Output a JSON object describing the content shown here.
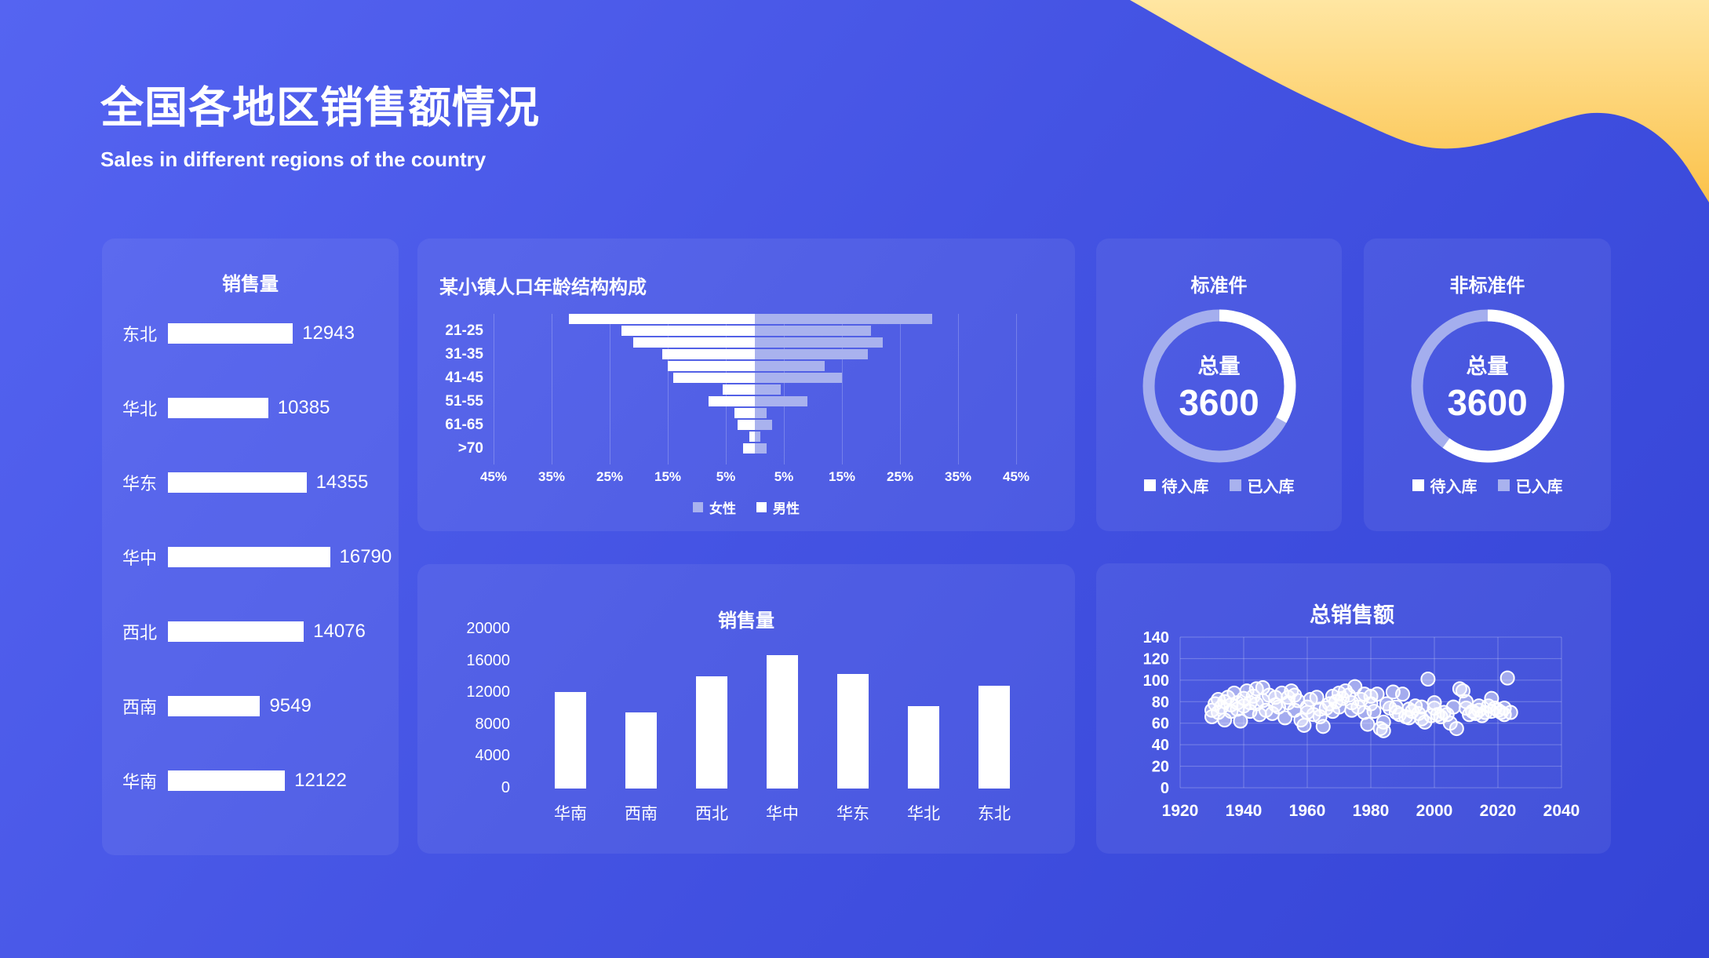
{
  "header": {
    "title": "全国各地区销售额情况",
    "subtitle": "Sales in different regions of the country"
  },
  "colors": {
    "background_top": "#5564f1",
    "background_bottom": "#3444d6",
    "panel": "rgba(255,255,255,0.065)",
    "white": "#ffffff",
    "lavender": "#a9b2ee",
    "grid": "rgba(255,255,255,0.26)",
    "wave_yellow_light": "#ffe39a",
    "wave_yellow_deep": "#fbc24b"
  },
  "chart_data": [
    {
      "id": "sales-hbar",
      "type": "bar",
      "orientation": "horizontal",
      "title": "销售量",
      "categories": [
        "东北",
        "华北",
        "华东",
        "华中",
        "西北",
        "西南",
        "华南"
      ],
      "values": [
        12943,
        10385,
        14355,
        16790,
        14076,
        9549,
        12122
      ],
      "xlim": [
        0,
        20000
      ],
      "bar_color": "#ffffff",
      "value_labels_shown": true
    },
    {
      "id": "age-pyramid",
      "type": "bar",
      "subtype": "population-pyramid",
      "title": "某小镇人口年龄结构构成",
      "categories": [
        "",
        "21-25",
        "",
        "31-35",
        "",
        "41-45",
        "",
        "51-55",
        "",
        "61-65",
        "",
        ">70"
      ],
      "series": [
        {
          "name": "男性",
          "side": "left",
          "color": "#ffffff",
          "values_pct": [
            32,
            23,
            21,
            16,
            15,
            14,
            5.5,
            8,
            3.5,
            3,
            1,
            2
          ]
        },
        {
          "name": "女性",
          "side": "right",
          "color": "#a9b2ee",
          "values_pct": [
            30.5,
            20,
            22,
            19.5,
            12,
            15,
            4.5,
            9,
            2,
            3,
            1,
            2
          ]
        }
      ],
      "x_ticks": [
        "45%",
        "35%",
        "25%",
        "15%",
        "5%",
        "5%",
        "15%",
        "25%",
        "35%",
        "45%"
      ],
      "x_max_pct": 45,
      "legend": [
        {
          "label": "女性",
          "color": "#a9b2ee"
        },
        {
          "label": "男性",
          "color": "#ffffff"
        }
      ],
      "grid": true
    },
    {
      "id": "donut-standard",
      "type": "pie",
      "subtype": "donut",
      "title": "标准件",
      "center_label": "总量",
      "center_value": "3600",
      "slices": [
        {
          "label": "待入库",
          "pct": 33,
          "color": "#ffffff"
        },
        {
          "label": "已入库",
          "pct": 67,
          "color": "#a9b2ee"
        }
      ]
    },
    {
      "id": "donut-nonstandard",
      "type": "pie",
      "subtype": "donut",
      "title": "非标准件",
      "center_label": "总量",
      "center_value": "3600",
      "slices": [
        {
          "label": "待入库",
          "pct": 60,
          "color": "#ffffff"
        },
        {
          "label": "已入库",
          "pct": 40,
          "color": "#a9b2ee"
        }
      ]
    },
    {
      "id": "sales-vbar",
      "type": "bar",
      "orientation": "vertical",
      "title": "销售量",
      "categories": [
        "华南",
        "西南",
        "西北",
        "华中",
        "华东",
        "华北",
        "东北"
      ],
      "values": [
        12122,
        9549,
        14076,
        16790,
        14355,
        10385,
        12943
      ],
      "ylim": [
        0,
        20000
      ],
      "y_ticks": [
        0,
        4000,
        8000,
        12000,
        16000,
        20000
      ],
      "bar_color": "#ffffff",
      "grid": false
    },
    {
      "id": "total-sales-scatter",
      "type": "scatter",
      "title": "总销售额",
      "xlim": [
        1920,
        2040
      ],
      "ylim": [
        0,
        140
      ],
      "x_ticks": [
        1920,
        1940,
        1960,
        1980,
        2000,
        2020,
        2040
      ],
      "y_ticks": [
        0,
        20,
        40,
        60,
        80,
        100,
        120,
        140
      ],
      "grid": true,
      "point_style": {
        "fill": "rgba(255,255,255,0.5)",
        "stroke": "#ffffff",
        "radius": 8.5
      },
      "points": [
        [
          1930,
          66
        ],
        [
          1930,
          72
        ],
        [
          1931,
          78
        ],
        [
          1932,
          70
        ],
        [
          1932,
          82
        ],
        [
          1933,
          75
        ],
        [
          1934,
          80
        ],
        [
          1934,
          63
        ],
        [
          1935,
          84
        ],
        [
          1936,
          77
        ],
        [
          1936,
          71
        ],
        [
          1937,
          88
        ],
        [
          1938,
          79
        ],
        [
          1938,
          73
        ],
        [
          1939,
          62
        ],
        [
          1940,
          83
        ],
        [
          1940,
          76
        ],
        [
          1941,
          90
        ],
        [
          1942,
          71
        ],
        [
          1942,
          79
        ],
        [
          1943,
          85
        ],
        [
          1944,
          92
        ],
        [
          1944,
          78
        ],
        [
          1945,
          68
        ],
        [
          1946,
          93
        ],
        [
          1946,
          81
        ],
        [
          1947,
          72
        ],
        [
          1948,
          86
        ],
        [
          1949,
          69
        ],
        [
          1950,
          77
        ],
        [
          1950,
          84
        ],
        [
          1951,
          75
        ],
        [
          1952,
          88
        ],
        [
          1953,
          65
        ],
        [
          1954,
          84
        ],
        [
          1954,
          79
        ],
        [
          1955,
          90
        ],
        [
          1956,
          72
        ],
        [
          1956,
          86
        ],
        [
          1957,
          81
        ],
        [
          1958,
          63
        ],
        [
          1959,
          58
        ],
        [
          1960,
          75
        ],
        [
          1960,
          70
        ],
        [
          1961,
          82
        ],
        [
          1962,
          68
        ],
        [
          1963,
          84
        ],
        [
          1964,
          66
        ],
        [
          1964,
          73
        ],
        [
          1965,
          57
        ],
        [
          1966,
          74
        ],
        [
          1967,
          78
        ],
        [
          1968,
          85
        ],
        [
          1968,
          71
        ],
        [
          1969,
          80
        ],
        [
          1970,
          88
        ],
        [
          1970,
          75
        ],
        [
          1971,
          83
        ],
        [
          1972,
          90
        ],
        [
          1973,
          86
        ],
        [
          1974,
          72
        ],
        [
          1974,
          79
        ],
        [
          1975,
          94
        ],
        [
          1976,
          75
        ],
        [
          1977,
          82
        ],
        [
          1978,
          87
        ],
        [
          1978,
          70
        ],
        [
          1979,
          59
        ],
        [
          1980,
          78
        ],
        [
          1980,
          85
        ],
        [
          1981,
          71
        ],
        [
          1982,
          87
        ],
        [
          1983,
          55
        ],
        [
          1984,
          53
        ],
        [
          1984,
          61
        ],
        [
          1985,
          78
        ],
        [
          1986,
          74
        ],
        [
          1987,
          89
        ],
        [
          1988,
          75
        ],
        [
          1988,
          70
        ],
        [
          1989,
          68
        ],
        [
          1990,
          87
        ],
        [
          1991,
          66
        ],
        [
          1992,
          73
        ],
        [
          1992,
          65
        ],
        [
          1993,
          71
        ],
        [
          1994,
          76
        ],
        [
          1995,
          69
        ],
        [
          1996,
          64
        ],
        [
          1996,
          75
        ],
        [
          1997,
          61
        ],
        [
          1998,
          101
        ],
        [
          1999,
          67
        ],
        [
          2000,
          79
        ],
        [
          2000,
          74
        ],
        [
          2001,
          68
        ],
        [
          2002,
          66
        ],
        [
          2003,
          70
        ],
        [
          2004,
          68
        ],
        [
          2005,
          60
        ],
        [
          2006,
          75
        ],
        [
          2007,
          55
        ],
        [
          2008,
          92
        ],
        [
          2009,
          90
        ],
        [
          2010,
          80
        ],
        [
          2010,
          74
        ],
        [
          2011,
          68
        ],
        [
          2012,
          71
        ],
        [
          2013,
          69
        ],
        [
          2014,
          72
        ],
        [
          2014,
          76
        ],
        [
          2015,
          67
        ],
        [
          2016,
          70
        ],
        [
          2017,
          76
        ],
        [
          2018,
          83
        ],
        [
          2018,
          71
        ],
        [
          2019,
          74
        ],
        [
          2020,
          72
        ],
        [
          2021,
          70
        ],
        [
          2022,
          68
        ],
        [
          2022,
          74
        ],
        [
          2023,
          102
        ],
        [
          2024,
          70
        ]
      ]
    }
  ]
}
